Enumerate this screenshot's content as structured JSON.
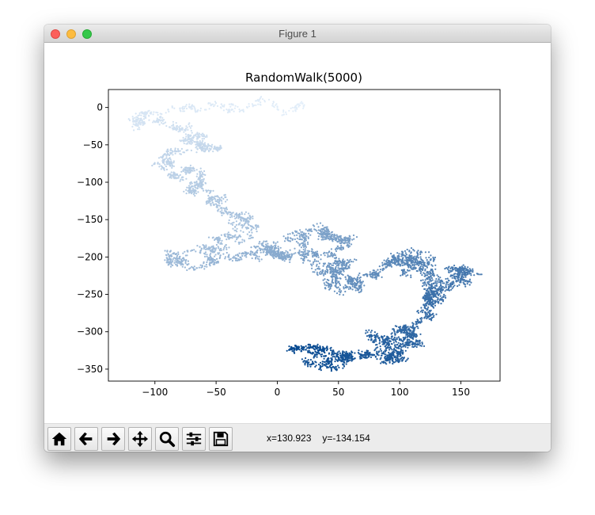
{
  "window": {
    "title": "Figure 1"
  },
  "toolbar": {
    "buttons": [
      {
        "name": "home-button",
        "icon": "home-icon"
      },
      {
        "name": "back-button",
        "icon": "arrow-left-icon"
      },
      {
        "name": "forward-button",
        "icon": "arrow-right-icon"
      },
      {
        "name": "pan-button",
        "icon": "move-icon"
      },
      {
        "name": "zoom-button",
        "icon": "magnifier-icon"
      },
      {
        "name": "configure-subplots-button",
        "icon": "sliders-icon"
      },
      {
        "name": "save-button",
        "icon": "floppy-disk-icon"
      }
    ],
    "x_readout": "x=130.923",
    "y_readout": "y=-134.154"
  },
  "chart_data": {
    "type": "scatter",
    "title": "RandomWalk(5000)",
    "xlabel": "",
    "ylabel": "",
    "xlim": [
      -138,
      182
    ],
    "ylim": [
      -366,
      24
    ],
    "xticks": [
      -100,
      -50,
      0,
      50,
      100,
      150
    ],
    "yticks": [
      0,
      -50,
      -100,
      -150,
      -200,
      -250,
      -300,
      -350
    ],
    "grid": false,
    "legend": "none",
    "colormap": "Blues",
    "color_range": [
      "#e4effa",
      "#084a91"
    ],
    "num_points": 5000,
    "path_waypoints": [
      {
        "x": 20,
        "y": 0
      },
      {
        "x": -10,
        "y": 2
      },
      {
        "x": -50,
        "y": -5
      },
      {
        "x": -90,
        "y": 0
      },
      {
        "x": -120,
        "y": -15
      },
      {
        "x": -110,
        "y": -20
      },
      {
        "x": -80,
        "y": -25
      },
      {
        "x": -60,
        "y": -35
      },
      {
        "x": -75,
        "y": -48
      },
      {
        "x": -50,
        "y": -55
      },
      {
        "x": -60,
        "y": -50
      },
      {
        "x": -90,
        "y": -60
      },
      {
        "x": -100,
        "y": -75
      },
      {
        "x": -80,
        "y": -90
      },
      {
        "x": -70,
        "y": -80
      },
      {
        "x": -60,
        "y": -105
      },
      {
        "x": -70,
        "y": -112
      },
      {
        "x": -50,
        "y": -120
      },
      {
        "x": -45,
        "y": -135
      },
      {
        "x": -35,
        "y": -155
      },
      {
        "x": -25,
        "y": -150
      },
      {
        "x": -35,
        "y": -170
      },
      {
        "x": -50,
        "y": -180
      },
      {
        "x": -55,
        "y": -195
      },
      {
        "x": -80,
        "y": -200
      },
      {
        "x": -90,
        "y": -205
      },
      {
        "x": -60,
        "y": -210
      },
      {
        "x": -40,
        "y": -205
      },
      {
        "x": -20,
        "y": -200
      },
      {
        "x": -10,
        "y": -185
      },
      {
        "x": -5,
        "y": -195
      },
      {
        "x": 0,
        "y": -195
      },
      {
        "x": 10,
        "y": -200
      },
      {
        "x": 20,
        "y": -190
      },
      {
        "x": 15,
        "y": -175
      },
      {
        "x": 30,
        "y": -160
      },
      {
        "x": 40,
        "y": -165
      },
      {
        "x": 50,
        "y": -175
      },
      {
        "x": 60,
        "y": -180
      },
      {
        "x": 40,
        "y": -190
      },
      {
        "x": 30,
        "y": -210
      },
      {
        "x": 40,
        "y": -220
      },
      {
        "x": 50,
        "y": -215
      },
      {
        "x": 60,
        "y": -205
      },
      {
        "x": 40,
        "y": -235
      },
      {
        "x": 55,
        "y": -240
      },
      {
        "x": 65,
        "y": -232
      },
      {
        "x": 75,
        "y": -230
      },
      {
        "x": 85,
        "y": -215
      },
      {
        "x": 95,
        "y": -210
      },
      {
        "x": 100,
        "y": -200
      },
      {
        "x": 110,
        "y": -198
      },
      {
        "x": 120,
        "y": -205
      },
      {
        "x": 105,
        "y": -215
      },
      {
        "x": 120,
        "y": -215
      },
      {
        "x": 130,
        "y": -225
      },
      {
        "x": 140,
        "y": -230
      },
      {
        "x": 160,
        "y": -215
      },
      {
        "x": 145,
        "y": -210
      },
      {
        "x": 150,
        "y": -225
      },
      {
        "x": 140,
        "y": -235
      },
      {
        "x": 125,
        "y": -245
      },
      {
        "x": 120,
        "y": -255
      },
      {
        "x": 130,
        "y": -258
      },
      {
        "x": 125,
        "y": -270
      },
      {
        "x": 115,
        "y": -280
      },
      {
        "x": 110,
        "y": -295
      },
      {
        "x": 105,
        "y": -305
      },
      {
        "x": 115,
        "y": -315
      },
      {
        "x": 105,
        "y": -318
      },
      {
        "x": 95,
        "y": -310
      },
      {
        "x": 85,
        "y": -305
      },
      {
        "x": 90,
        "y": -320
      },
      {
        "x": 100,
        "y": -330
      },
      {
        "x": 98,
        "y": -340
      },
      {
        "x": 85,
        "y": -335
      },
      {
        "x": 70,
        "y": -330
      },
      {
        "x": 60,
        "y": -333
      },
      {
        "x": 55,
        "y": -338
      },
      {
        "x": 45,
        "y": -330
      },
      {
        "x": 40,
        "y": -345
      },
      {
        "x": 30,
        "y": -340
      },
      {
        "x": 38,
        "y": -325
      },
      {
        "x": 25,
        "y": -325
      },
      {
        "x": 18,
        "y": -322
      }
    ]
  }
}
